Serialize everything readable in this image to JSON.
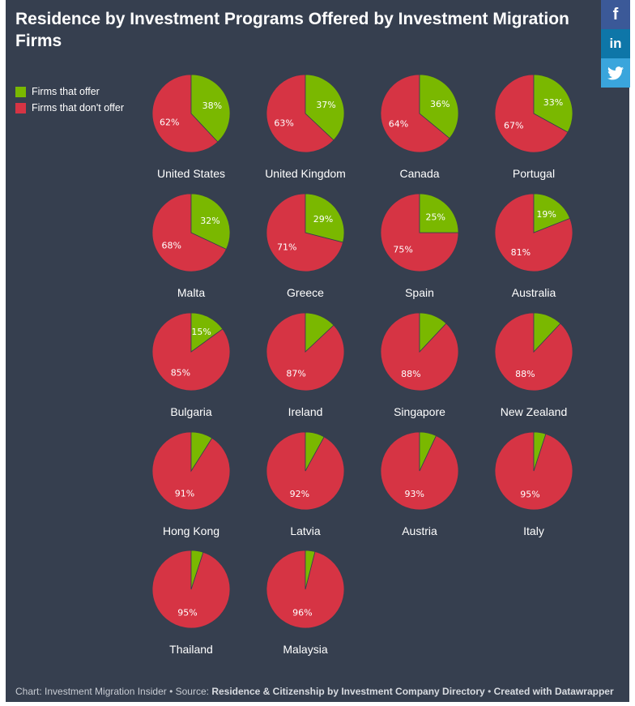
{
  "title": "Residence by Investment Programs Offered by Investment Migration Firms",
  "legend": [
    {
      "label": "Firms that offer",
      "color": "#7ab800"
    },
    {
      "label": "Firms that don't offer",
      "color": "#d63444"
    }
  ],
  "social": {
    "facebook": "f",
    "linkedin": "in",
    "twitter_icon": "twitter-icon"
  },
  "footer": {
    "prefix": "Chart: Investment Migration Insider • Source: ",
    "source": "Residence & Citizenship by Investment Company Directory",
    "sep": " • ",
    "credit": "Created with Datawrapper"
  },
  "chart_data": {
    "type": "pie",
    "title": "Residence by Investment Programs Offered by Investment Migration Firms",
    "series_names": [
      "Firms that offer",
      "Firms that don't offer"
    ],
    "colors": {
      "offer": "#7ab800",
      "not_offer": "#d63444"
    },
    "countries": [
      {
        "name": "United States",
        "offer": 38,
        "not_offer": 62,
        "offer_label": "38%",
        "not_offer_label": "62%"
      },
      {
        "name": "United Kingdom",
        "offer": 37,
        "not_offer": 63,
        "offer_label": "37%",
        "not_offer_label": "63%"
      },
      {
        "name": "Canada",
        "offer": 36,
        "not_offer": 64,
        "offer_label": "36%",
        "not_offer_label": "64%"
      },
      {
        "name": "Portugal",
        "offer": 33,
        "not_offer": 67,
        "offer_label": "33%",
        "not_offer_label": "67%"
      },
      {
        "name": "Malta",
        "offer": 32,
        "not_offer": 68,
        "offer_label": "32%",
        "not_offer_label": "68%"
      },
      {
        "name": "Greece",
        "offer": 29,
        "not_offer": 71,
        "offer_label": "29%",
        "not_offer_label": "71%"
      },
      {
        "name": "Spain",
        "offer": 25,
        "not_offer": 75,
        "offer_label": "25%",
        "not_offer_label": "75%"
      },
      {
        "name": "Australia",
        "offer": 19,
        "not_offer": 81,
        "offer_label": "19%",
        "not_offer_label": "81%"
      },
      {
        "name": "Bulgaria",
        "offer": 15,
        "not_offer": 85,
        "offer_label": "15%",
        "not_offer_label": "85%"
      },
      {
        "name": "Ireland",
        "offer": 13,
        "not_offer": 87,
        "offer_label": "",
        "not_offer_label": "87%"
      },
      {
        "name": "Singapore",
        "offer": 12,
        "not_offer": 88,
        "offer_label": "",
        "not_offer_label": "88%"
      },
      {
        "name": "New Zealand",
        "offer": 12,
        "not_offer": 88,
        "offer_label": "",
        "not_offer_label": "88%"
      },
      {
        "name": "Hong Kong",
        "offer": 9,
        "not_offer": 91,
        "offer_label": "",
        "not_offer_label": "91%"
      },
      {
        "name": "Latvia",
        "offer": 8,
        "not_offer": 92,
        "offer_label": "",
        "not_offer_label": "92%"
      },
      {
        "name": "Austria",
        "offer": 7,
        "not_offer": 93,
        "offer_label": "",
        "not_offer_label": "93%"
      },
      {
        "name": "Italy",
        "offer": 5,
        "not_offer": 95,
        "offer_label": "",
        "not_offer_label": "95%"
      },
      {
        "name": "Thailand",
        "offer": 5,
        "not_offer": 95,
        "offer_label": "",
        "not_offer_label": "95%"
      },
      {
        "name": "Malaysia",
        "offer": 4,
        "not_offer": 96,
        "offer_label": "",
        "not_offer_label": "96%"
      }
    ]
  }
}
